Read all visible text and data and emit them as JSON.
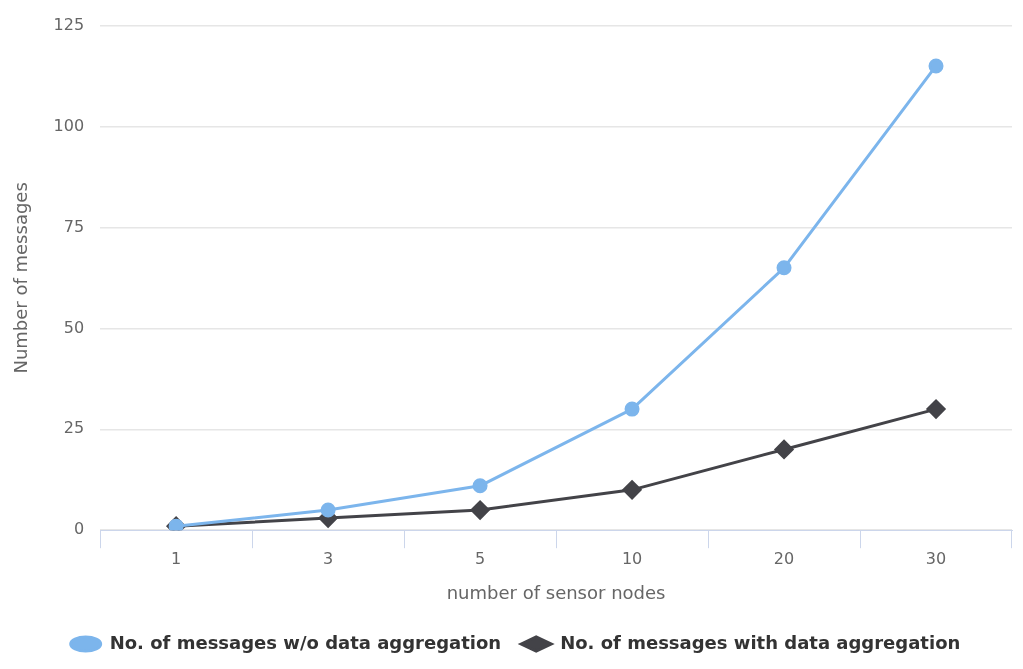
{
  "chart_data": {
    "type": "line",
    "xlabel": "number of sensor nodes",
    "ylabel": "Number of messages",
    "categories": [
      "1",
      "3",
      "5",
      "10",
      "20",
      "30"
    ],
    "series": [
      {
        "name": "No. of messages w/o data aggregation",
        "color": "#7cb5ec",
        "marker": "circle",
        "values": [
          1,
          5,
          11,
          30,
          65,
          115
        ]
      },
      {
        "name": "No. of messages with data aggregation",
        "color": "#434348",
        "marker": "diamond",
        "values": [
          1,
          3,
          5,
          10,
          20,
          30
        ]
      }
    ],
    "ylim": [
      0,
      125
    ],
    "yticks": [
      0,
      25,
      50,
      75,
      100,
      125
    ],
    "grid": "y",
    "legend": "bottom",
    "line_style": "solid"
  }
}
